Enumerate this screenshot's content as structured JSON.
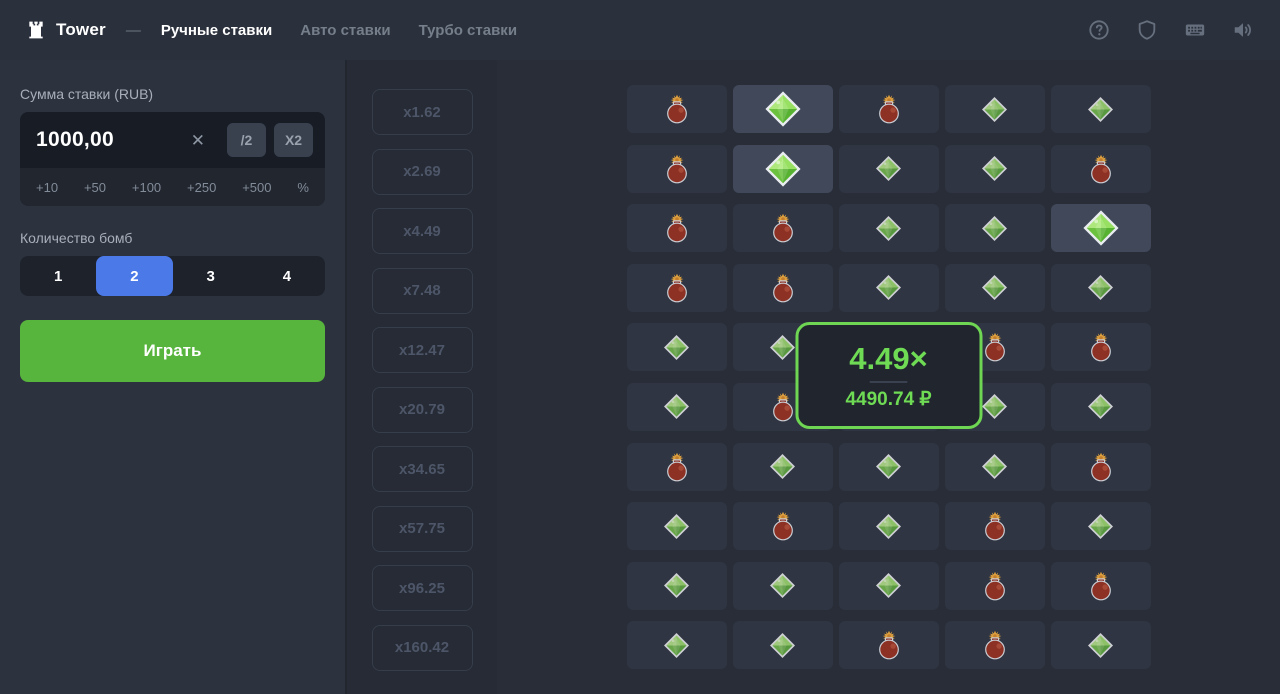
{
  "topbar": {
    "brand": "Tower",
    "separator": "—",
    "tabs": [
      {
        "label": "Ручные ставки",
        "active": true
      },
      {
        "label": "Авто ставки",
        "active": false
      },
      {
        "label": "Турбо ставки",
        "active": false
      }
    ]
  },
  "sidebar": {
    "bet_label": "Сумма ставки (RUB)",
    "bet_value": "1000,00",
    "clear_glyph": "✕",
    "half_button": "/2",
    "double_button": "X2",
    "quick_adds": [
      "+10",
      "+50",
      "+100",
      "+250",
      "+500",
      "%"
    ],
    "bombs_label": "Количество бомб",
    "bomb_options": [
      "1",
      "2",
      "3",
      "4"
    ],
    "bomb_selected": "2",
    "play_button": "Играть"
  },
  "multipliers": [
    "x1.62",
    "x2.69",
    "x4.49",
    "x7.48",
    "x12.47",
    "x20.79",
    "x34.65",
    "x57.75",
    "x96.25",
    "x160.42"
  ],
  "popup": {
    "multiplier": "4.49×",
    "payout": "4490.74 ₽"
  },
  "grid": {
    "columns": 5,
    "rows": [
      [
        "bomb",
        "gem-selected",
        "bomb",
        "gem",
        "gem"
      ],
      [
        "bomb",
        "gem-selected",
        "gem",
        "gem",
        "bomb"
      ],
      [
        "bomb",
        "bomb",
        "gem",
        "gem",
        "gem-selected"
      ],
      [
        "bomb",
        "bomb",
        "gem",
        "gem",
        "gem"
      ],
      [
        "gem",
        "gem",
        "gem",
        "bomb",
        "bomb"
      ],
      [
        "gem",
        "bomb",
        "gem",
        "gem",
        "gem"
      ],
      [
        "bomb",
        "gem",
        "gem",
        "gem",
        "bomb"
      ],
      [
        "gem",
        "bomb",
        "gem",
        "bomb",
        "gem"
      ],
      [
        "gem",
        "gem",
        "gem",
        "bomb",
        "bomb"
      ],
      [
        "gem",
        "gem",
        "bomb",
        "bomb",
        "gem"
      ]
    ]
  },
  "colors": {
    "accent_blue": "#4b7ae8",
    "play_green": "#57b43c",
    "popup_green": "#6fdb55",
    "gem_green": "#7ccf4a",
    "bomb_red": "#8e3125",
    "background": "#282d38"
  }
}
